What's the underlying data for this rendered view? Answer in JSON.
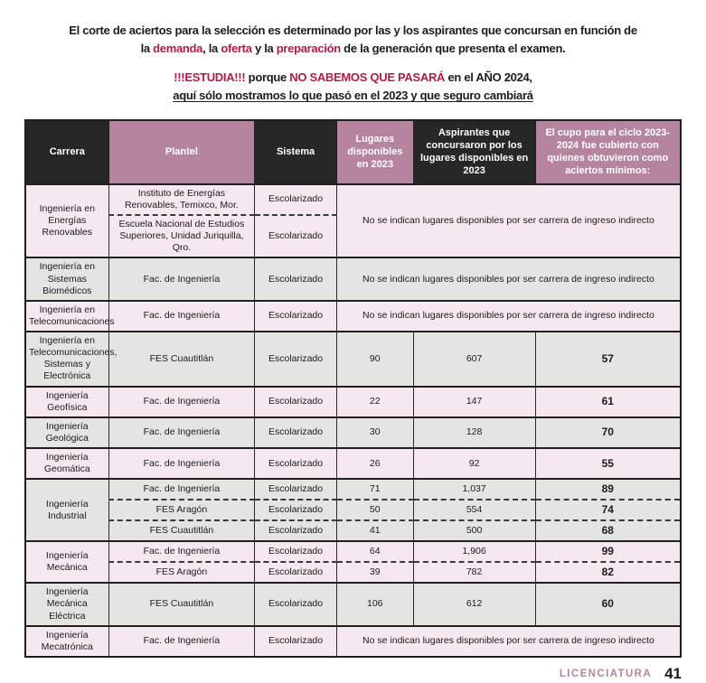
{
  "intro": {
    "paragraph_lines": [
      {
        "segments": [
          {
            "t": "El corte de aciertos para la selección es determinado por las y los aspirantes que concursan en función de"
          }
        ]
      },
      {
        "segments": [
          {
            "t": "la "
          },
          {
            "t": "demanda",
            "red": true
          },
          {
            "t": ", la "
          },
          {
            "t": "oferta",
            "red": true
          },
          {
            "t": " y la "
          },
          {
            "t": "preparación",
            "red": true
          },
          {
            "t": " de la generación que presenta el examen."
          }
        ]
      }
    ],
    "warning_lines": [
      {
        "segments": [
          {
            "t": "!!!ESTUDIA!!!",
            "red": true
          },
          {
            "t": " porque "
          },
          {
            "t": "NO SABEMOS QUE PASARÁ",
            "red": true
          },
          {
            "t": " en el AÑO 2024,"
          }
        ]
      },
      {
        "segments": [
          {
            "t": "aquí sólo mostramos lo que pasó en el 2023 y que seguro cambiará",
            "underline": true
          }
        ]
      }
    ]
  },
  "table": {
    "headers": [
      {
        "label": "Carrera",
        "style": "dark"
      },
      {
        "label": "Plantel",
        "style": "mauve"
      },
      {
        "label": "Sistema",
        "style": "dark"
      },
      {
        "label": "Lugares disponibles en 2023",
        "style": "mauve"
      },
      {
        "label": "Aspirantes que concursaron por los lugares disponibles en 2023",
        "style": "dark"
      },
      {
        "label": "El cupo para el ciclo 2023-2024 fue cubierto con quienes obtuvieron como aciertos mínimos:",
        "style": "mauve"
      }
    ],
    "indirect_note": "No se indican lugares disponibles por ser carrera de ingreso indirecto",
    "groups": [
      {
        "career": "Ingeniería en Energías Renovables",
        "indirect": true,
        "rows": [
          {
            "plantel": "Instituto de Energías Renovables, Temixco, Mor.",
            "sistema": "Escolarizado"
          },
          {
            "plantel": "Escuela Nacional de Estudios Superiores, Unidad Juriquilla, Qro.",
            "sistema": "Escolarizado"
          }
        ]
      },
      {
        "career": "Ingeniería en Sistemas Biomédicos",
        "indirect": true,
        "rows": [
          {
            "plantel": "Fac. de Ingeniería",
            "sistema": "Escolarizado"
          }
        ]
      },
      {
        "career": "Ingeniería en Telecomunicaciones",
        "indirect": true,
        "rows": [
          {
            "plantel": "Fac. de Ingeniería",
            "sistema": "Escolarizado"
          }
        ]
      },
      {
        "career": "Ingeniería en Telecomunicaciones, Sistemas y Electrónica",
        "rows": [
          {
            "plantel": "FES Cuautitlán",
            "sistema": "Escolarizado",
            "lugares": "90",
            "aspirantes": "607",
            "cupo": "57"
          }
        ]
      },
      {
        "career": "Ingeniería Geofísica",
        "rows": [
          {
            "plantel": "Fac. de Ingeniería",
            "sistema": "Escolarizado",
            "lugares": "22",
            "aspirantes": "147",
            "cupo": "61"
          }
        ]
      },
      {
        "career": "Ingeniería Geológica",
        "rows": [
          {
            "plantel": "Fac. de Ingeniería",
            "sistema": "Escolarizado",
            "lugares": "30",
            "aspirantes": "128",
            "cupo": "70"
          }
        ]
      },
      {
        "career": "Ingeniería Geomática",
        "rows": [
          {
            "plantel": "Fac. de Ingeniería",
            "sistema": "Escolarizado",
            "lugares": "26",
            "aspirantes": "92",
            "cupo": "55"
          }
        ]
      },
      {
        "career": "Ingeniería Industrial",
        "rows": [
          {
            "plantel": "Fac. de Ingeniería",
            "sistema": "Escolarizado",
            "lugares": "71",
            "aspirantes": "1,037",
            "cupo": "89"
          },
          {
            "plantel": "FES Aragón",
            "sistema": "Escolarizado",
            "lugares": "50",
            "aspirantes": "554",
            "cupo": "74"
          },
          {
            "plantel": "FES Cuautitlán",
            "sistema": "Escolarizado",
            "lugares": "41",
            "aspirantes": "500",
            "cupo": "68"
          }
        ]
      },
      {
        "career": "Ingeniería Mecánica",
        "rows": [
          {
            "plantel": "Fac. de Ingeniería",
            "sistema": "Escolarizado",
            "lugares": "64",
            "aspirantes": "1,906",
            "cupo": "99"
          },
          {
            "plantel": "FES Aragón",
            "sistema": "Escolarizado",
            "lugares": "39",
            "aspirantes": "782",
            "cupo": "82"
          }
        ]
      },
      {
        "career": "Ingeniería Mecánica Eléctrica",
        "rows": [
          {
            "plantel": "FES Cuautitlán",
            "sistema": "Escolarizado",
            "lugares": "106",
            "aspirantes": "612",
            "cupo": "60"
          }
        ]
      },
      {
        "career": "Ingeniería Mecatrónica",
        "indirect": true,
        "rows": [
          {
            "plantel": "Fac. de Ingeniería",
            "sistema": "Escolarizado"
          }
        ]
      }
    ]
  },
  "footer": {
    "section_label": "LICENCIATURA",
    "page_number": "41"
  },
  "colors": {
    "accent_red": "#ad1e45",
    "header_dark": "#272727",
    "header_mauve": "#b5849e",
    "row_pink": "#f5e9ef",
    "row_gray": "#e4e4e1",
    "footer_mauve": "#b286a3"
  }
}
